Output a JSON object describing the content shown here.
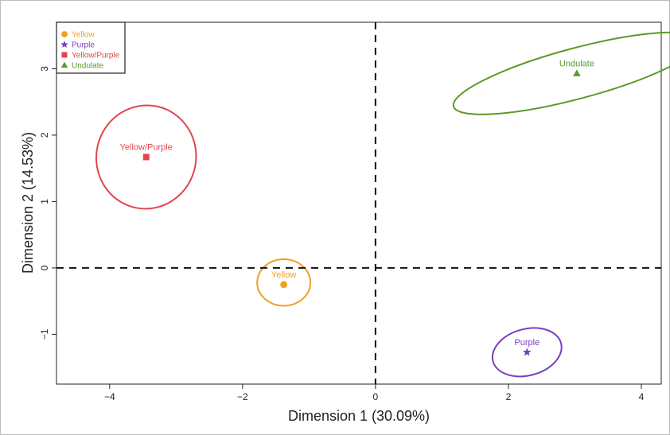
{
  "chart_data": {
    "type": "scatter",
    "xlabel": "Dimension 1 (30.09%)",
    "ylabel": "Dimension 2 (14.53%)",
    "xlim": [
      -4.8,
      4.3
    ],
    "ylim": [
      -1.75,
      3.7
    ],
    "xticks": [
      -4,
      -2,
      0,
      2,
      4
    ],
    "yticks": [
      -1,
      0,
      1,
      2,
      3
    ],
    "xtick_labels": [
      "−4",
      "−2",
      "0",
      "2",
      "4"
    ],
    "ytick_labels": [
      "−1",
      "0",
      "1",
      "2",
      "3"
    ],
    "reference_lines": {
      "x": 0,
      "y": 0,
      "style": "dashed"
    },
    "grid": false,
    "legend_position": "top-left",
    "series": [
      {
        "name": "Yellow",
        "label": "Yellow",
        "marker": "circle",
        "color": "#f0a020",
        "x": -1.38,
        "y": -0.25,
        "ellipse": {
          "cx": -1.38,
          "cy": -0.22,
          "rx": 0.4,
          "ry": 0.35,
          "angle": 0
        }
      },
      {
        "name": "Purple",
        "label": "Purple",
        "marker": "star",
        "color": "#7a3fc0",
        "x": 2.28,
        "y": -1.27,
        "ellipse": {
          "cx": 2.28,
          "cy": -1.27,
          "rx": 0.53,
          "ry": 0.35,
          "angle": -15
        }
      },
      {
        "name": "Yellow/Purple",
        "label": "Yellow/Purple",
        "marker": "square",
        "color": "#e0454e",
        "x": -3.45,
        "y": 1.67,
        "ellipse": {
          "cx": -3.45,
          "cy": 1.67,
          "rx": 0.75,
          "ry": 0.78,
          "angle": 12
        }
      },
      {
        "name": "Undulate",
        "label": "Undulate",
        "marker": "triangle",
        "color": "#5a9a2a",
        "x": 3.03,
        "y": 2.93,
        "ellipse": {
          "cx": 3.03,
          "cy": 2.93,
          "rx": 1.92,
          "ry": 0.38,
          "angle": -15
        }
      }
    ]
  }
}
